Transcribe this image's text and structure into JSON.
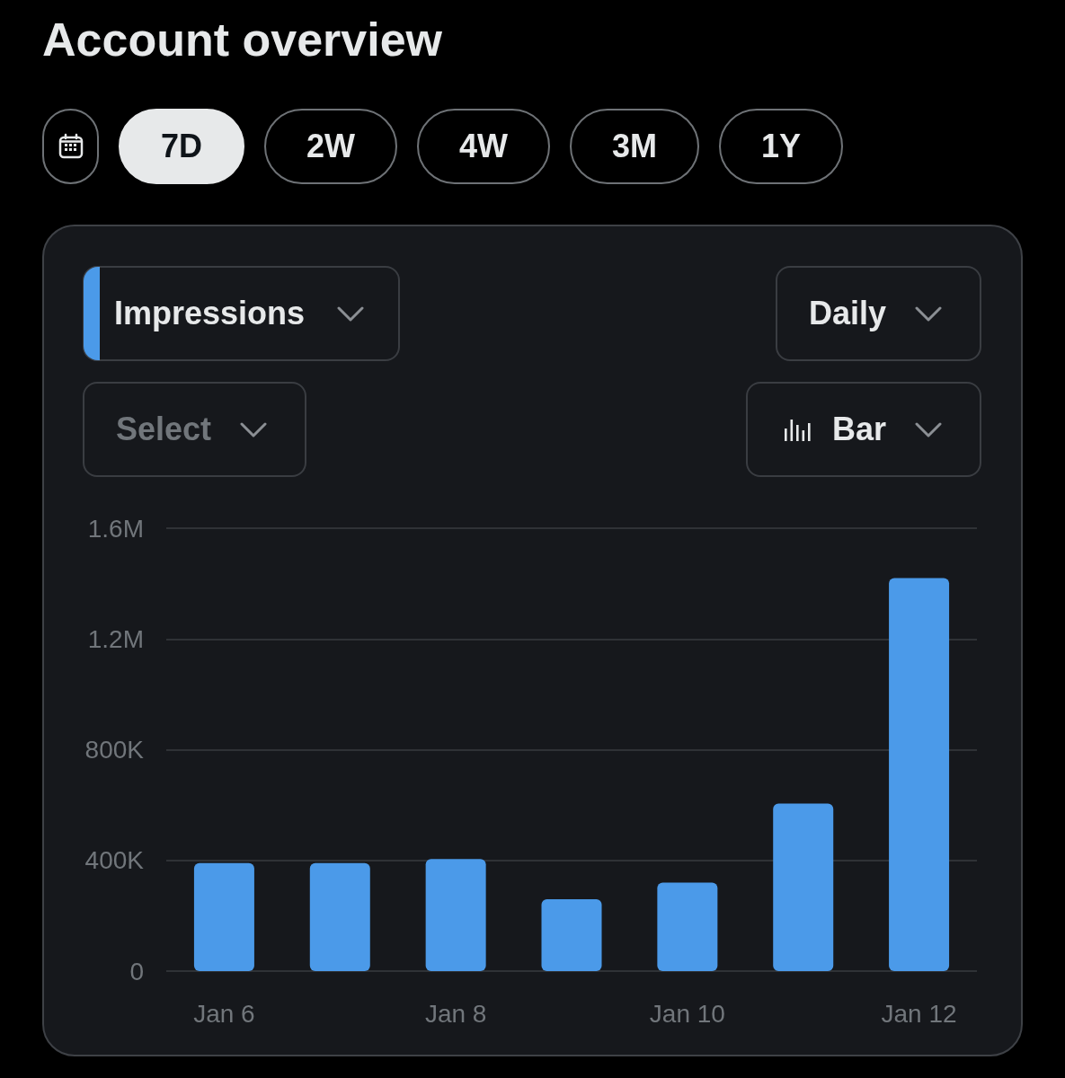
{
  "chart_data": {
    "type": "bar",
    "title": "Account overview",
    "categories": [
      "Jan 6",
      null,
      "Jan 8",
      null,
      "Jan 10",
      null,
      "Jan 12"
    ],
    "series": [
      {
        "name": "Impressions",
        "color": "#4b9ae9",
        "values": [
          390000,
          390000,
          405000,
          260000,
          320000,
          605000,
          1420000
        ]
      }
    ],
    "ylim": [
      0,
      1600000
    ],
    "yticks": [
      0,
      {
        "value": 400000,
        "label": "400K"
      },
      {
        "value": 800000,
        "label": "800K"
      },
      {
        "value": 1200000,
        "label": "1.2M"
      },
      {
        "value": 1600000,
        "label": "1.6M"
      }
    ],
    "grid": "y",
    "legend": "top left",
    "annotations": [
      "7D",
      "2W",
      "4W",
      "3M",
      "1Y",
      "Daily",
      "Select",
      "Bar"
    ]
  }
}
